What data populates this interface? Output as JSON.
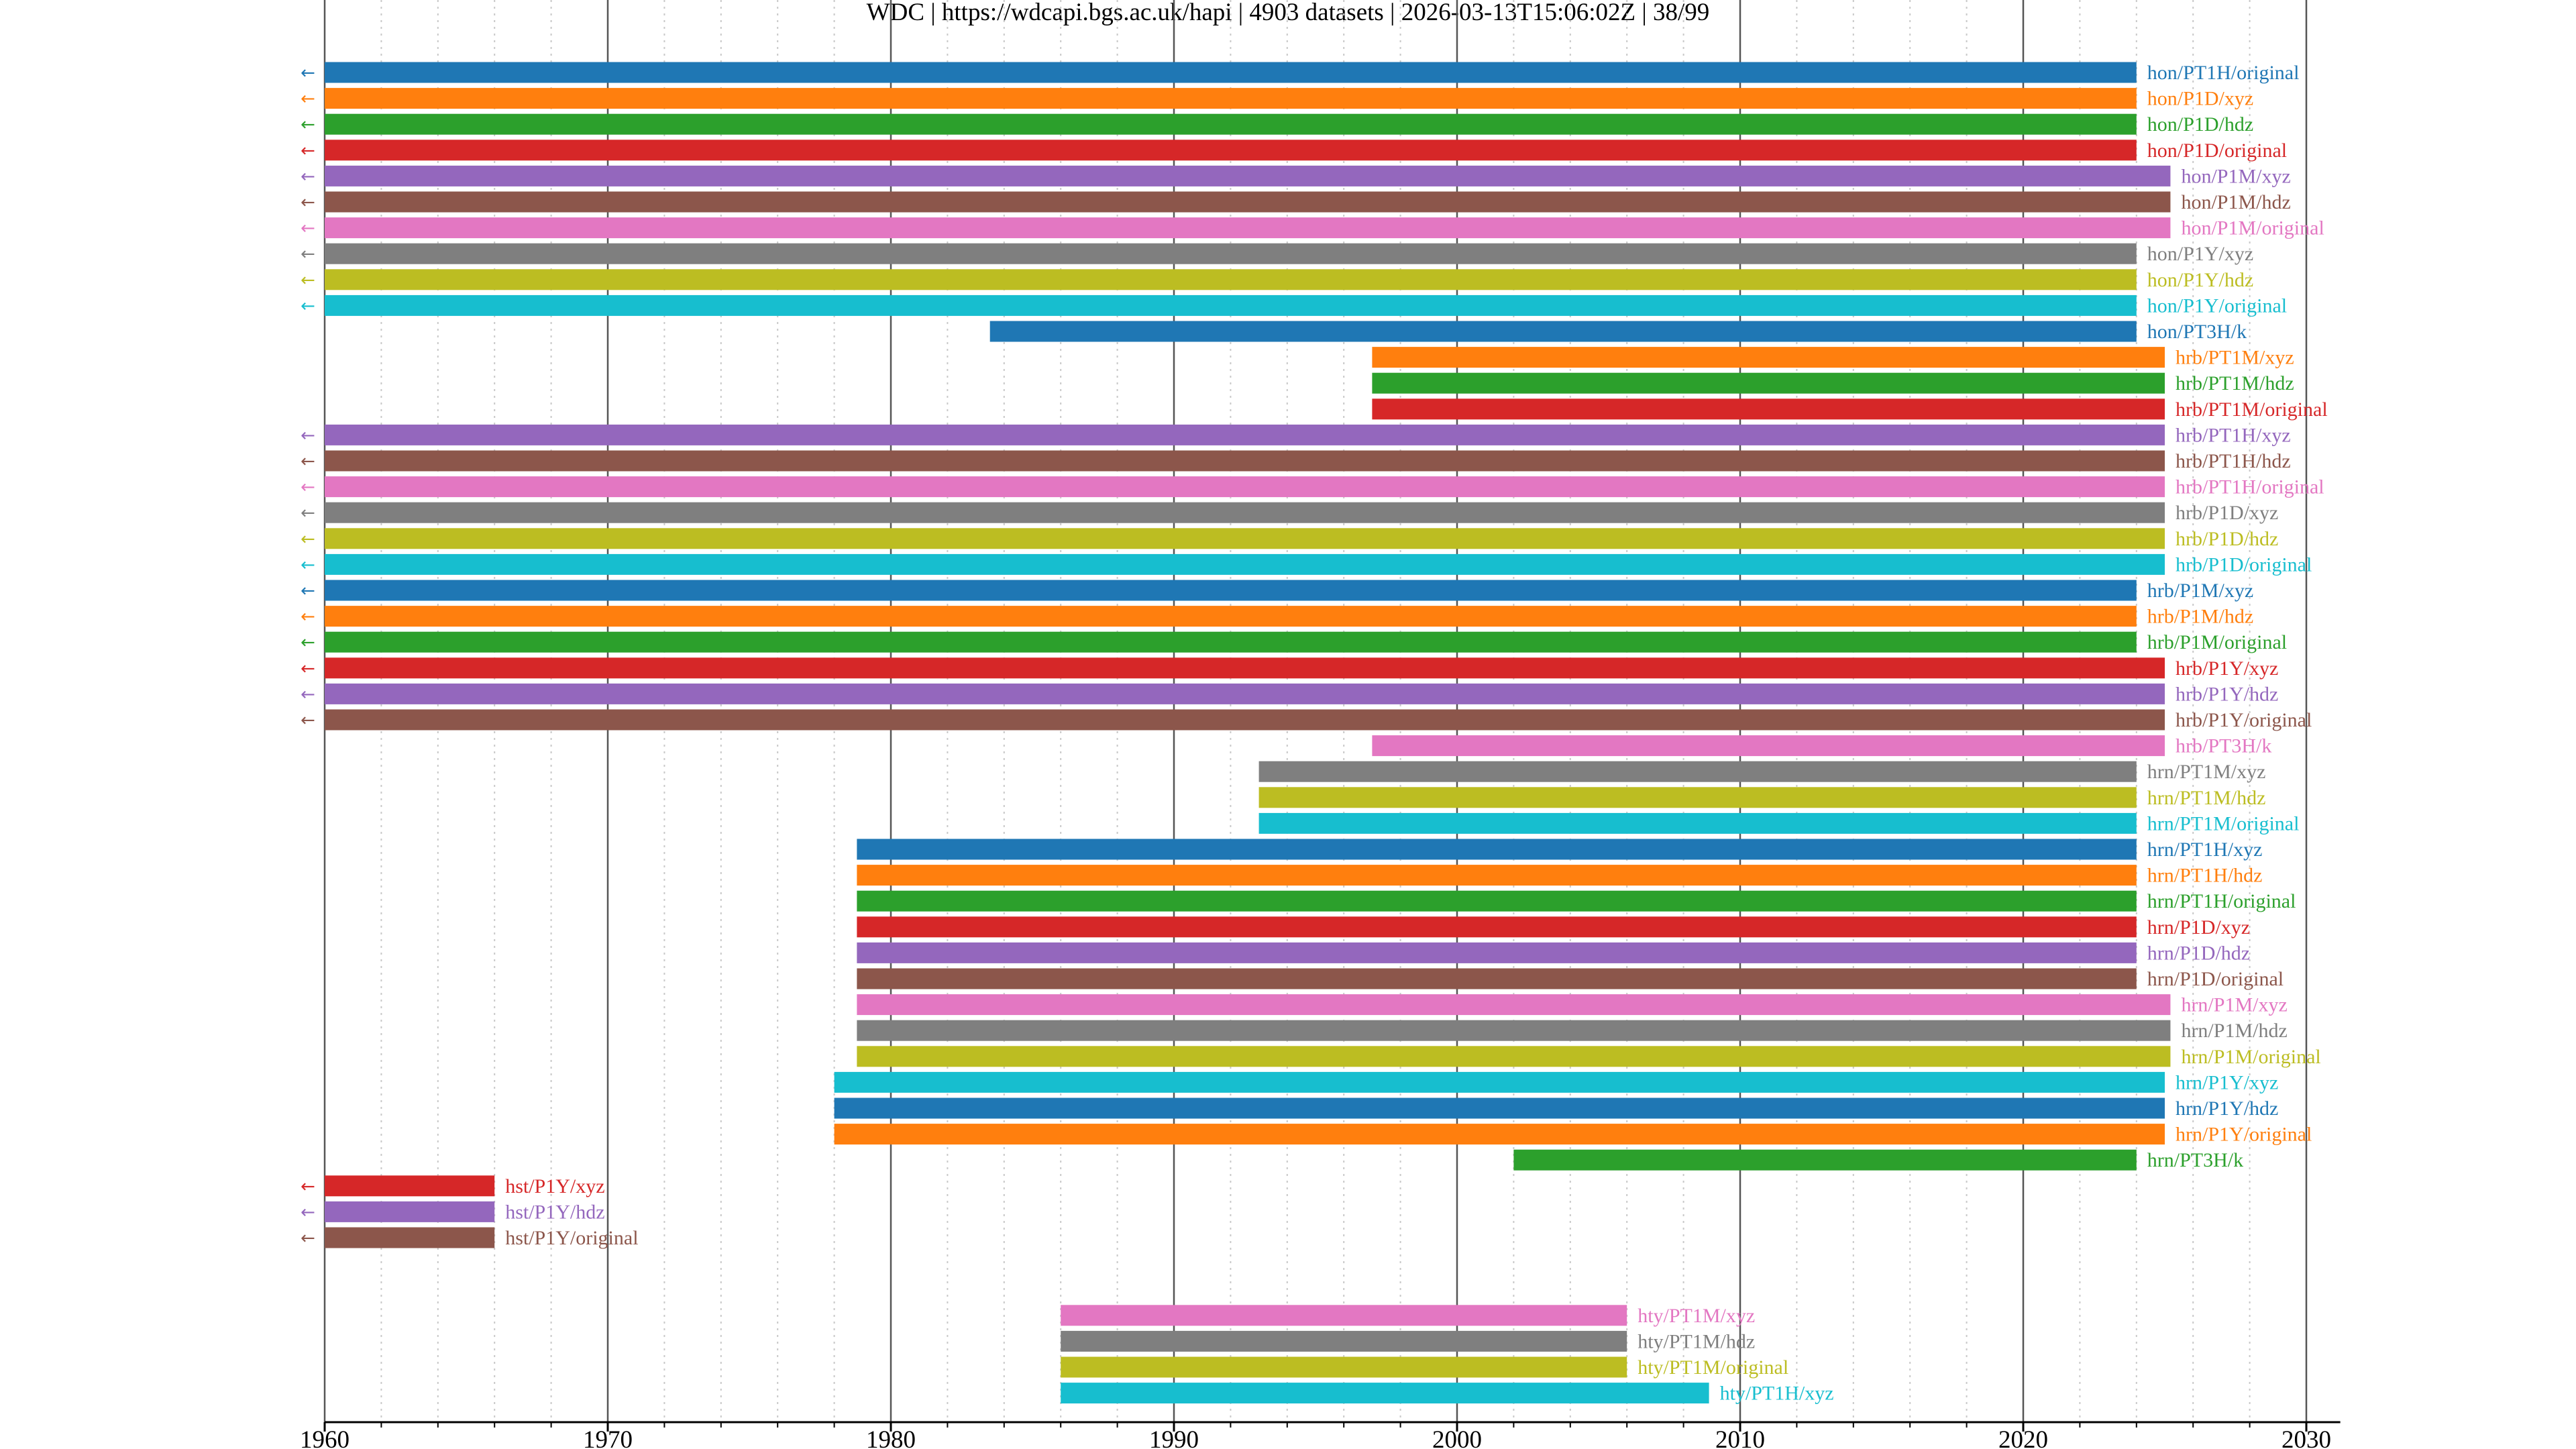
{
  "chart_data": {
    "type": "timeline",
    "title": "WDC | https://wdcapi.bgs.ac.uk/hapi | 4903 datasets | 2026-03-13T15:06:02Z | 38/99",
    "xlim": [
      1960,
      2031.2
    ],
    "xticks": [
      1960,
      1970,
      1980,
      1990,
      2000,
      2010,
      2020,
      2030
    ],
    "xtick_labels": [
      "1960",
      "1970",
      "1980",
      "1990",
      "2000",
      "2010",
      "2020",
      "2030"
    ],
    "minor_tick_step": 2,
    "left_arrow_symbol": "←",
    "colors": [
      "#1f77b4",
      "#ff7f0e",
      "#2ca02c",
      "#d62728",
      "#9467bd",
      "#8c564b",
      "#e377c2",
      "#7f7f7f",
      "#bcbd22",
      "#17becf"
    ],
    "datasets": [
      {
        "label": "hon/PT1H/original",
        "start": 1960,
        "end": 2024.0,
        "color": "#1f77b4",
        "extends_left": true
      },
      {
        "label": "hon/P1D/xyz",
        "start": 1960,
        "end": 2024.0,
        "color": "#ff7f0e",
        "extends_left": true
      },
      {
        "label": "hon/P1D/hdz",
        "start": 1960,
        "end": 2024.0,
        "color": "#2ca02c",
        "extends_left": true
      },
      {
        "label": "hon/P1D/original",
        "start": 1960,
        "end": 2024.0,
        "color": "#d62728",
        "extends_left": true
      },
      {
        "label": "hon/P1M/xyz",
        "start": 1960,
        "end": 2025.2,
        "color": "#9467bd",
        "extends_left": true
      },
      {
        "label": "hon/P1M/hdz",
        "start": 1960,
        "end": 2025.2,
        "color": "#8c564b",
        "extends_left": true
      },
      {
        "label": "hon/P1M/original",
        "start": 1960,
        "end": 2025.2,
        "color": "#e377c2",
        "extends_left": true
      },
      {
        "label": "hon/P1Y/xyz",
        "start": 1960,
        "end": 2024.0,
        "color": "#7f7f7f",
        "extends_left": true
      },
      {
        "label": "hon/P1Y/hdz",
        "start": 1960,
        "end": 2024.0,
        "color": "#bcbd22",
        "extends_left": true
      },
      {
        "label": "hon/P1Y/original",
        "start": 1960,
        "end": 2024.0,
        "color": "#17becf",
        "extends_left": true
      },
      {
        "label": "hon/PT3H/k",
        "start": 1983.5,
        "end": 2024.0,
        "color": "#1f77b4",
        "extends_left": false
      },
      {
        "label": "hrb/PT1M/xyz",
        "start": 1997.0,
        "end": 2025.0,
        "color": "#ff7f0e",
        "extends_left": false
      },
      {
        "label": "hrb/PT1M/hdz",
        "start": 1997.0,
        "end": 2025.0,
        "color": "#2ca02c",
        "extends_left": false
      },
      {
        "label": "hrb/PT1M/original",
        "start": 1997.0,
        "end": 2025.0,
        "color": "#d62728",
        "extends_left": false
      },
      {
        "label": "hrb/PT1H/xyz",
        "start": 1960,
        "end": 2025.0,
        "color": "#9467bd",
        "extends_left": true
      },
      {
        "label": "hrb/PT1H/hdz",
        "start": 1960,
        "end": 2025.0,
        "color": "#8c564b",
        "extends_left": true
      },
      {
        "label": "hrb/PT1H/original",
        "start": 1960,
        "end": 2025.0,
        "color": "#e377c2",
        "extends_left": true
      },
      {
        "label": "hrb/P1D/xyz",
        "start": 1960,
        "end": 2025.0,
        "color": "#7f7f7f",
        "extends_left": true
      },
      {
        "label": "hrb/P1D/hdz",
        "start": 1960,
        "end": 2025.0,
        "color": "#bcbd22",
        "extends_left": true
      },
      {
        "label": "hrb/P1D/original",
        "start": 1960,
        "end": 2025.0,
        "color": "#17becf",
        "extends_left": true
      },
      {
        "label": "hrb/P1M/xyz",
        "start": 1960,
        "end": 2024.0,
        "color": "#1f77b4",
        "extends_left": true
      },
      {
        "label": "hrb/P1M/hdz",
        "start": 1960,
        "end": 2024.0,
        "color": "#ff7f0e",
        "extends_left": true
      },
      {
        "label": "hrb/P1M/original",
        "start": 1960,
        "end": 2024.0,
        "color": "#2ca02c",
        "extends_left": true
      },
      {
        "label": "hrb/P1Y/xyz",
        "start": 1960,
        "end": 2025.0,
        "color": "#d62728",
        "extends_left": true
      },
      {
        "label": "hrb/P1Y/hdz",
        "start": 1960,
        "end": 2025.0,
        "color": "#9467bd",
        "extends_left": true
      },
      {
        "label": "hrb/P1Y/original",
        "start": 1960,
        "end": 2025.0,
        "color": "#8c564b",
        "extends_left": true
      },
      {
        "label": "hrb/PT3H/k",
        "start": 1997.0,
        "end": 2025.0,
        "color": "#e377c2",
        "extends_left": false
      },
      {
        "label": "hrn/PT1M/xyz",
        "start": 1993.0,
        "end": 2024.0,
        "color": "#7f7f7f",
        "extends_left": false
      },
      {
        "label": "hrn/PT1M/hdz",
        "start": 1993.0,
        "end": 2024.0,
        "color": "#bcbd22",
        "extends_left": false
      },
      {
        "label": "hrn/PT1M/original",
        "start": 1993.0,
        "end": 2024.0,
        "color": "#17becf",
        "extends_left": false
      },
      {
        "label": "hrn/PT1H/xyz",
        "start": 1978.8,
        "end": 2024.0,
        "color": "#1f77b4",
        "extends_left": false
      },
      {
        "label": "hrn/PT1H/hdz",
        "start": 1978.8,
        "end": 2024.0,
        "color": "#ff7f0e",
        "extends_left": false
      },
      {
        "label": "hrn/PT1H/original",
        "start": 1978.8,
        "end": 2024.0,
        "color": "#2ca02c",
        "extends_left": false
      },
      {
        "label": "hrn/P1D/xyz",
        "start": 1978.8,
        "end": 2024.0,
        "color": "#d62728",
        "extends_left": false
      },
      {
        "label": "hrn/P1D/hdz",
        "start": 1978.8,
        "end": 2024.0,
        "color": "#9467bd",
        "extends_left": false
      },
      {
        "label": "hrn/P1D/original",
        "start": 1978.8,
        "end": 2024.0,
        "color": "#8c564b",
        "extends_left": false
      },
      {
        "label": "hrn/P1M/xyz",
        "start": 1978.8,
        "end": 2025.2,
        "color": "#e377c2",
        "extends_left": false
      },
      {
        "label": "hrn/P1M/hdz",
        "start": 1978.8,
        "end": 2025.2,
        "color": "#7f7f7f",
        "extends_left": false
      },
      {
        "label": "hrn/P1M/original",
        "start": 1978.8,
        "end": 2025.2,
        "color": "#bcbd22",
        "extends_left": false
      },
      {
        "label": "hrn/P1Y/xyz",
        "start": 1978.0,
        "end": 2025.0,
        "color": "#17becf",
        "extends_left": false
      },
      {
        "label": "hrn/P1Y/hdz",
        "start": 1978.0,
        "end": 2025.0,
        "color": "#1f77b4",
        "extends_left": false
      },
      {
        "label": "hrn/P1Y/original",
        "start": 1978.0,
        "end": 2025.0,
        "color": "#ff7f0e",
        "extends_left": false
      },
      {
        "label": "hrn/PT3H/k",
        "start": 2002.0,
        "end": 2024.0,
        "color": "#2ca02c",
        "extends_left": false
      },
      {
        "label": "hst/P1Y/xyz",
        "start": 1960,
        "end": 1966.0,
        "color": "#d62728",
        "extends_left": true
      },
      {
        "label": "hst/P1Y/hdz",
        "start": 1960,
        "end": 1966.0,
        "color": "#9467bd",
        "extends_left": true
      },
      {
        "label": "hst/P1Y/original",
        "start": 1960,
        "end": 1966.0,
        "color": "#8c564b",
        "extends_left": true
      },
      {
        "label": "",
        "start": null,
        "end": null,
        "color": "",
        "extends_left": false
      },
      {
        "label": "",
        "start": null,
        "end": null,
        "color": "",
        "extends_left": false
      },
      {
        "label": "hty/PT1M/xyz",
        "start": 1986.0,
        "end": 2006.0,
        "color": "#e377c2",
        "extends_left": false
      },
      {
        "label": "hty/PT1M/hdz",
        "start": 1986.0,
        "end": 2006.0,
        "color": "#7f7f7f",
        "extends_left": false
      },
      {
        "label": "hty/PT1M/original",
        "start": 1986.0,
        "end": 2006.0,
        "color": "#bcbd22",
        "extends_left": false
      },
      {
        "label": "hty/PT1H/xyz",
        "start": 1986.0,
        "end": 2008.9,
        "color": "#17becf",
        "extends_left": false
      }
    ]
  }
}
